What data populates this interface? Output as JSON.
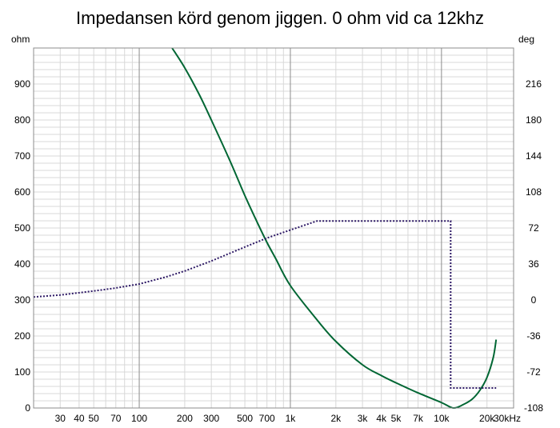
{
  "chart_data": {
    "type": "line",
    "title": "Impedansen körd genom jiggen. 0 ohm vid ca 12khz",
    "x_scale": "log",
    "x_unit_label": "kHz",
    "y_left_unit": "ohm",
    "y_right_unit": "deg",
    "xlim": [
      20,
      30000
    ],
    "ylim_left": [
      0,
      1000
    ],
    "ylim_right": [
      -108,
      252
    ],
    "grid": true,
    "x_tick_labels": [
      {
        "value": 30,
        "label": "30"
      },
      {
        "value": 40,
        "label": "40"
      },
      {
        "value": 50,
        "label": "50"
      },
      {
        "value": 70,
        "label": "70"
      },
      {
        "value": 100,
        "label": "100"
      },
      {
        "value": 200,
        "label": "200"
      },
      {
        "value": 300,
        "label": "300"
      },
      {
        "value": 500,
        "label": "500"
      },
      {
        "value": 700,
        "label": "700"
      },
      {
        "value": 1000,
        "label": "1k"
      },
      {
        "value": 2000,
        "label": "2k"
      },
      {
        "value": 3000,
        "label": "3k"
      },
      {
        "value": 4000,
        "label": "4k"
      },
      {
        "value": 5000,
        "label": "5k"
      },
      {
        "value": 7000,
        "label": "7k"
      },
      {
        "value": 10000,
        "label": "10k"
      },
      {
        "value": 20000,
        "label": "20k"
      },
      {
        "value": 30000,
        "label": "30kHz"
      }
    ],
    "y_left_ticks": [
      0,
      100,
      200,
      300,
      400,
      500,
      600,
      700,
      800,
      900
    ],
    "y_right_ticks": [
      -108,
      -72,
      -36,
      0,
      36,
      72,
      108,
      144,
      180,
      216
    ],
    "series": [
      {
        "color": "#006633",
        "style": "solid",
        "axis": "left",
        "x": [
          165,
          200,
          250,
          300,
          400,
          500,
          600,
          700,
          800,
          1000,
          1500,
          2000,
          3000,
          4000,
          5000,
          7000,
          10000,
          12000,
          14000,
          16000,
          18000,
          20000,
          22000,
          23000
        ],
        "y": [
          1000,
          945,
          870,
          800,
          685,
          590,
          518,
          460,
          415,
          340,
          245,
          185,
          120,
          90,
          70,
          42,
          15,
          0,
          10,
          25,
          50,
          85,
          140,
          190
        ]
      },
      {
        "color": "#2e1a66",
        "style": "dotted",
        "axis": "right",
        "x": [
          20,
          30,
          50,
          70,
          100,
          150,
          200,
          300,
          500,
          700,
          1000,
          1500,
          11500,
          11500,
          13000,
          20000,
          23000
        ],
        "y": [
          3,
          5,
          9,
          12,
          16,
          23,
          29,
          39,
          53,
          62,
          70,
          79,
          79,
          -88,
          -88,
          -88,
          -88
        ]
      }
    ]
  }
}
